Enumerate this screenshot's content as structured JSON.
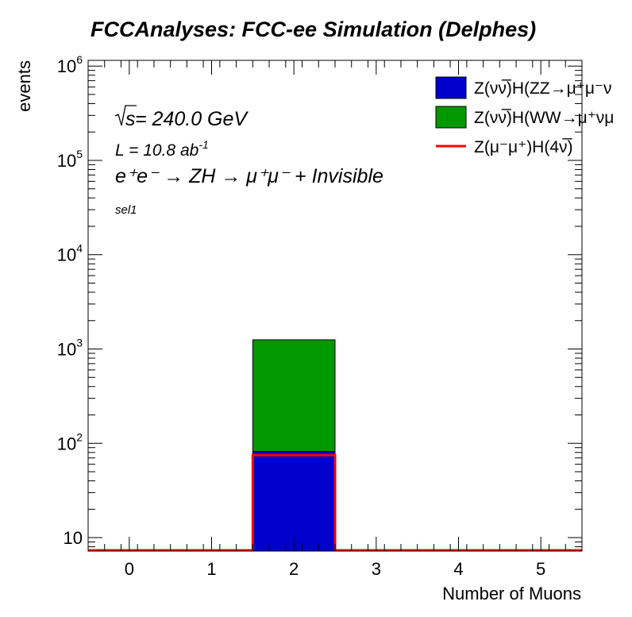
{
  "chart_data": {
    "type": "bar",
    "title": "FCCAnalyses: FCC-ee Simulation (Delphes)",
    "xlabel": "Number of Muons",
    "ylabel": "events",
    "x_ticks": [
      "0",
      "1",
      "2",
      "3",
      "4",
      "5"
    ],
    "x_range": [
      -0.5,
      5.5
    ],
    "y_scale": "log",
    "y_range": [
      7.2,
      1150000
    ],
    "y_ticks": [
      {
        "base": "10",
        "exp": ""
      },
      {
        "base": "10",
        "exp": "2"
      },
      {
        "base": "10",
        "exp": "3"
      },
      {
        "base": "10",
        "exp": "4"
      },
      {
        "base": "10",
        "exp": "5"
      },
      {
        "base": "10",
        "exp": "6"
      }
    ],
    "y_tick_values": [
      10,
      100,
      1000,
      10000,
      100000,
      1000000
    ],
    "stack": true,
    "series": [
      {
        "name_main": "Z(νν̅)H(ZZ",
        "name_tail": "→μ⁺μ⁻ν",
        "style": "fill",
        "color": "#0000cc",
        "bins": [
          {
            "x": 2,
            "value": 82
          }
        ]
      },
      {
        "name_main": "Z(νν̅)H(WW",
        "name_tail": "→μ⁺νμ",
        "style": "fill",
        "color": "#009900",
        "bins": [
          {
            "x": 2,
            "value": 1170
          }
        ]
      },
      {
        "name_main": "Z(μ⁻μ⁺)H(4ν̅)",
        "name_tail": "",
        "style": "line",
        "color": "#ff0000",
        "bins": [
          {
            "x": 2,
            "value": 75
          }
        ]
      }
    ],
    "annotations": {
      "sqrt_s": "s",
      "energy": " = 240.0 GeV",
      "lumi": "L = 10.8 ab",
      "lumi_exp": "-1",
      "process": "e⁺e⁻ → ZH → μ⁺μ⁻ + Invisible",
      "selection": "sel1"
    },
    "legend_position": "top-right"
  }
}
